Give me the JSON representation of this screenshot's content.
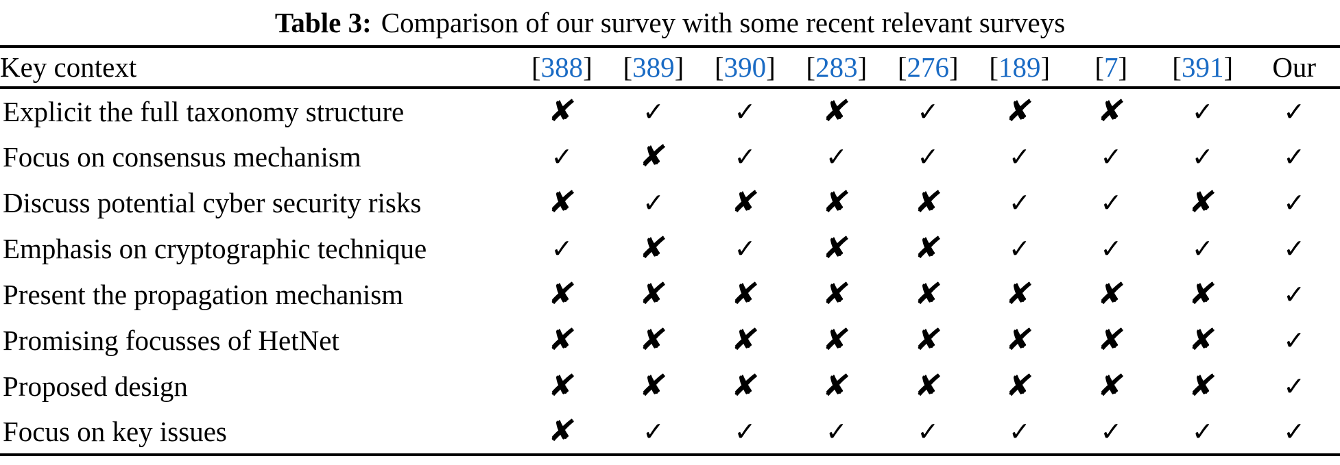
{
  "page": {
    "title": {
      "label": "Table 3:",
      "text": "Comparison of our survey with some recent relevant surveys"
    }
  },
  "table": {
    "header": {
      "key_context": "Key context",
      "bracket_open": "[",
      "bracket_close": "]",
      "citations": [
        "388",
        "389",
        "390",
        "283",
        "276",
        "189",
        "7",
        "391"
      ],
      "our_label": "Our"
    },
    "symbols": {
      "check": "✓",
      "cross": "✘"
    },
    "colors": {
      "citation_blue": "#1a6bc4",
      "rule_black": "#000000"
    },
    "rows": [
      {
        "label": "Explicit the full taxonomy structure",
        "marks": [
          "cross",
          "check",
          "check",
          "cross",
          "check",
          "cross",
          "cross",
          "check",
          "check"
        ]
      },
      {
        "label": "Focus on consensus mechanism",
        "marks": [
          "check",
          "cross",
          "check",
          "check",
          "check",
          "check",
          "check",
          "check",
          "check"
        ]
      },
      {
        "label": "Discuss potential cyber security risks",
        "marks": [
          "cross",
          "check",
          "cross",
          "cross",
          "cross",
          "check",
          "check",
          "cross",
          "check"
        ]
      },
      {
        "label": "Emphasis on cryptographic technique",
        "marks": [
          "check",
          "cross",
          "check",
          "cross",
          "cross",
          "check",
          "check",
          "check",
          "check"
        ]
      },
      {
        "label": "Present the propagation mechanism",
        "marks": [
          "cross",
          "cross",
          "cross",
          "cross",
          "cross",
          "cross",
          "cross",
          "cross",
          "check"
        ]
      },
      {
        "label": "Promising focusses of HetNet",
        "marks": [
          "cross",
          "cross",
          "cross",
          "cross",
          "cross",
          "cross",
          "cross",
          "cross",
          "check"
        ]
      },
      {
        "label": "Proposed design",
        "marks": [
          "cross",
          "cross",
          "cross",
          "cross",
          "cross",
          "cross",
          "cross",
          "cross",
          "check"
        ]
      },
      {
        "label": "Focus on key issues",
        "marks": [
          "cross",
          "check",
          "check",
          "check",
          "check",
          "check",
          "check",
          "check",
          "check"
        ]
      }
    ]
  }
}
